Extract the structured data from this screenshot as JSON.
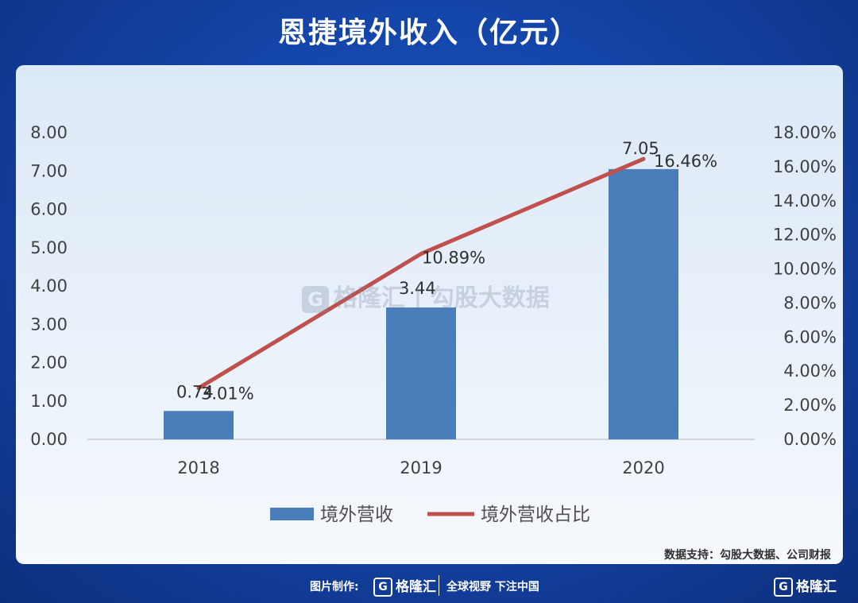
{
  "title": "恩捷境外收入（亿元）",
  "chart_data": {
    "type": "bar",
    "categories": [
      "2018",
      "2019",
      "2020"
    ],
    "series": [
      {
        "name": "境外营收",
        "type": "bar",
        "axis": "left",
        "values": [
          0.74,
          3.44,
          7.05
        ],
        "labels": [
          "0.74",
          "3.44",
          "7.05"
        ],
        "color": "#4a7ebb"
      },
      {
        "name": "境外营收占比",
        "type": "line",
        "axis": "right",
        "values": [
          3.01,
          10.89,
          16.46
        ],
        "labels": [
          "3.01%",
          "10.89%",
          "16.46%"
        ],
        "color": "#c0504d"
      }
    ],
    "y_left": {
      "min": 0,
      "max": 8,
      "ticks": [
        "0.00",
        "1.00",
        "2.00",
        "3.00",
        "4.00",
        "5.00",
        "6.00",
        "7.00",
        "8.00"
      ]
    },
    "y_right": {
      "min": 0,
      "max": 18,
      "ticks": [
        "0.00%",
        "2.00%",
        "4.00%",
        "6.00%",
        "8.00%",
        "10.00%",
        "12.00%",
        "14.00%",
        "16.00%",
        "18.00%"
      ]
    },
    "grid": false,
    "legend": "bottom"
  },
  "watermark": {
    "logo_glyph": "G",
    "text": "格隆汇 | 勾股大数据"
  },
  "source": "数据支持：勾股大数据、公司财报",
  "footer": {
    "credit": "图片制作:",
    "logo_glyph": "G",
    "logo_text": "格隆汇",
    "slogan": "全球视野 下注中国",
    "corner_glyph": "G",
    "corner_text": "格隆汇"
  }
}
